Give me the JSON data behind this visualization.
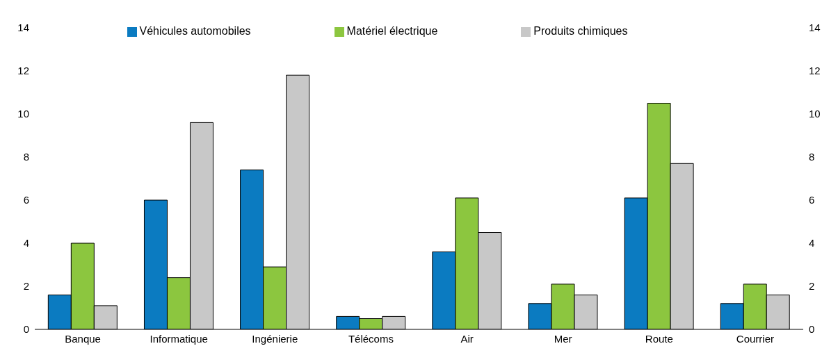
{
  "chart_data": {
    "type": "bar",
    "categories": [
      "Banque",
      "Informatique",
      "Ingénierie",
      "Télécoms",
      "Air",
      "Mer",
      "Route",
      "Courrier"
    ],
    "series": [
      {
        "name": "Véhicules automobiles",
        "color": "#0b7bc1",
        "values": [
          1.6,
          6.0,
          7.4,
          0.6,
          3.6,
          1.2,
          6.1,
          1.2
        ]
      },
      {
        "name": "Matériel électrique",
        "color": "#8cc63f",
        "values": [
          4.0,
          2.4,
          2.9,
          0.5,
          6.1,
          2.1,
          10.5,
          2.1
        ]
      },
      {
        "name": "Produits chimiques",
        "color": "#c8c8c8",
        "values": [
          1.1,
          9.6,
          11.8,
          0.6,
          4.5,
          1.6,
          7.7,
          1.6
        ]
      }
    ],
    "ylim": [
      0,
      14
    ],
    "yticks": [
      0,
      2,
      4,
      6,
      8,
      10,
      12,
      14
    ],
    "y2lim": [
      0,
      14
    ],
    "y2ticks": [
      0,
      2,
      4,
      6,
      8,
      10,
      12,
      14
    ],
    "grid": false,
    "legend": "top"
  }
}
